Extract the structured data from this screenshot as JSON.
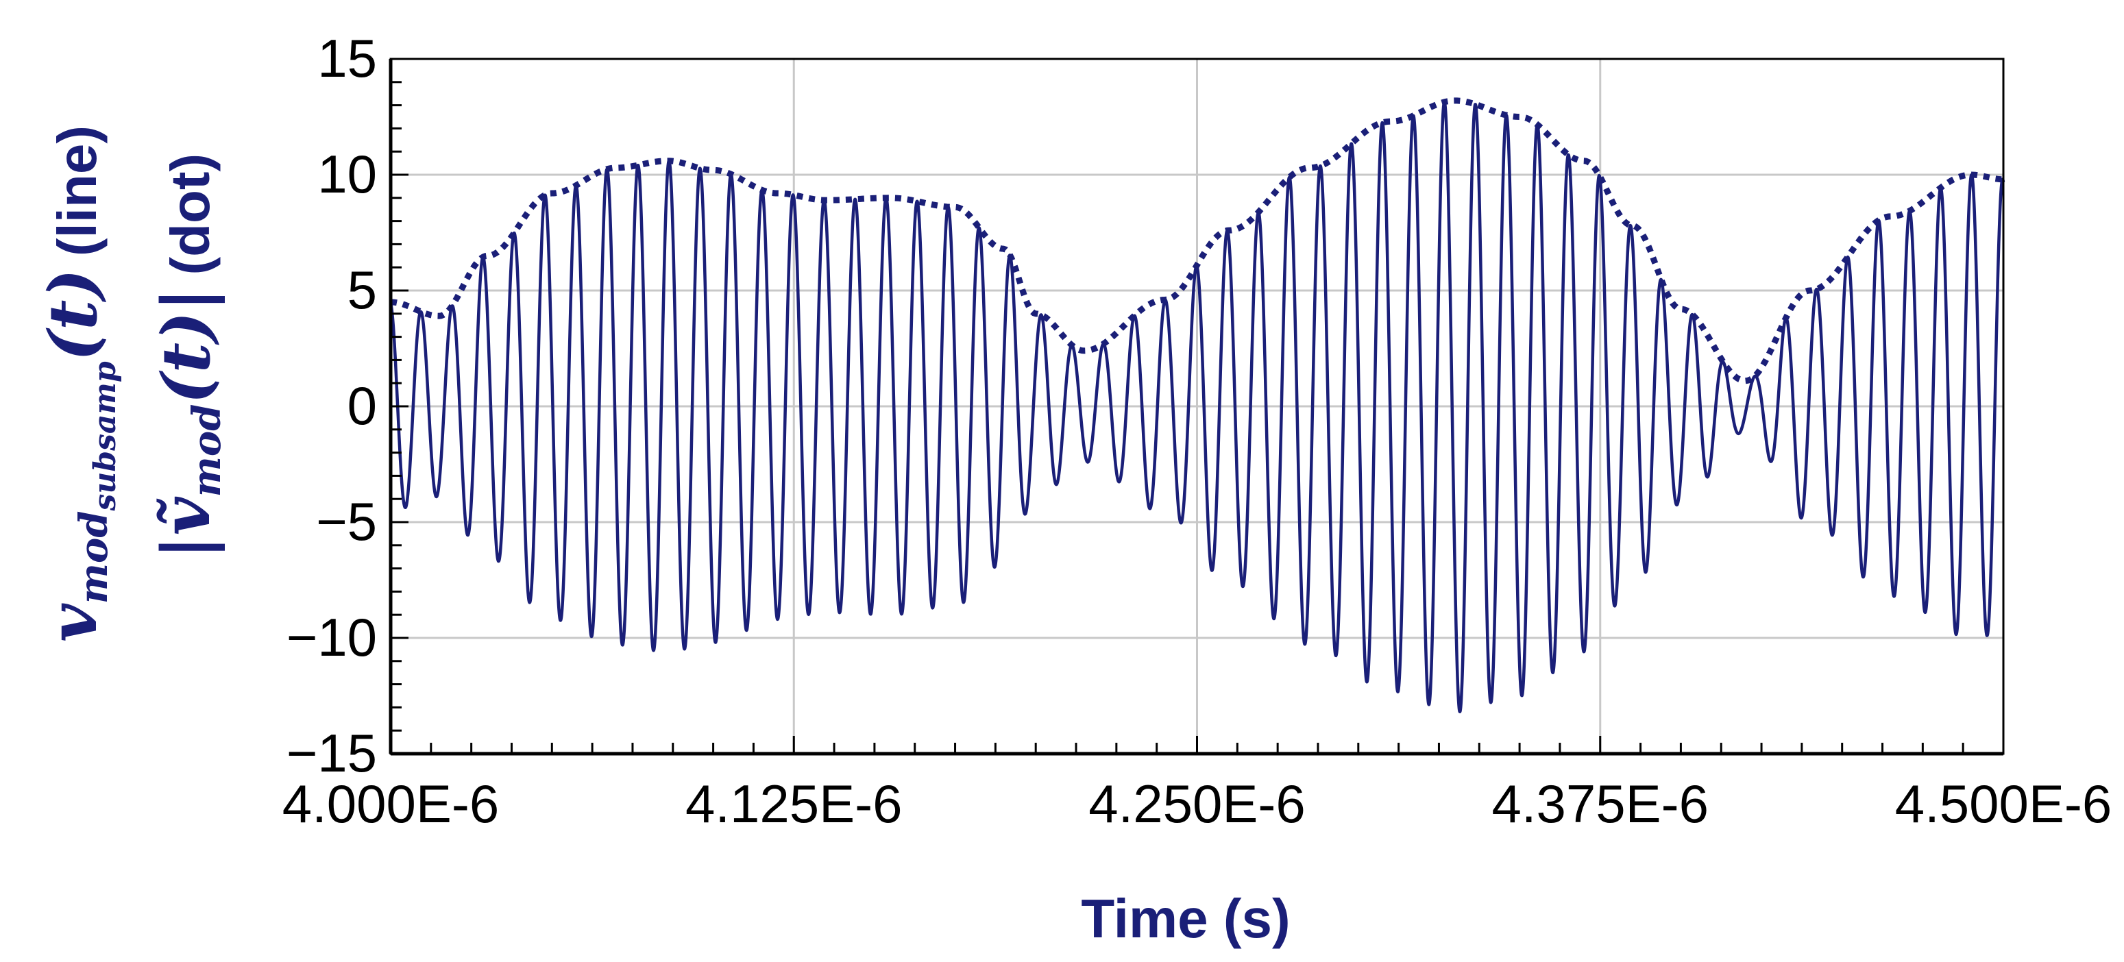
{
  "chart_data": {
    "type": "line",
    "title": "",
    "xlabel": "Time (s)",
    "ylabel": {
      "line1": {
        "symbol": "v",
        "sub": "mod",
        "subsub": "subsamp",
        "arg": "(t)",
        "suffix": "(line)"
      },
      "line2": {
        "open": "|",
        "symbol": "ṽ",
        "sub": "mod",
        "arg": "(t)",
        "close": "|",
        "suffix": "(dot)"
      }
    },
    "xlim": [
      4e-06,
      4.5e-06
    ],
    "ylim": [
      -15,
      15
    ],
    "x_ticks": [
      4e-06,
      4.125e-06,
      4.25e-06,
      4.375e-06,
      4.5e-06
    ],
    "x_tick_labels": [
      "4.000E-6",
      "4.125E-6",
      "4.250E-6",
      "4.375E-6",
      "4.500E-6"
    ],
    "x_minor_step": 1.25e-08,
    "y_ticks": [
      15,
      10,
      5,
      0,
      -5,
      -10,
      -15
    ],
    "y_tick_labels": [
      "15",
      "10",
      "5",
      "0",
      "−5",
      "−10",
      "−15"
    ],
    "y_minor_step": 1,
    "grid": true,
    "carrier_cycles": 52,
    "series": [
      {
        "style": "line",
        "color": "#1a1f78",
        "x": [
          4e-06,
          4.015e-06,
          4.03e-06,
          4.05e-06,
          4.07e-06,
          4.086e-06,
          4.1e-06,
          4.12e-06,
          4.135e-06,
          4.155e-06,
          4.175e-06,
          4.19e-06,
          4.2e-06,
          4.215e-06,
          4.24e-06,
          4.26e-06,
          4.285e-06,
          4.31e-06,
          4.33e-06,
          4.35e-06,
          4.37e-06,
          4.385e-06,
          4.4e-06,
          4.42e-06,
          4.44e-06,
          4.465e-06,
          4.49e-06,
          4.5e-06
        ],
        "amplitude": [
          4.5,
          3.9,
          6.5,
          9.2,
          10.3,
          10.6,
          10.2,
          9.2,
          8.9,
          9.0,
          8.6,
          6.8,
          4.0,
          2.4,
          4.6,
          7.6,
          10.3,
          12.3,
          13.2,
          12.5,
          10.6,
          7.8,
          4.2,
          1.1,
          5.0,
          8.2,
          10.0,
          9.8
        ]
      },
      {
        "style": "dot",
        "color": "#1a1f78",
        "x": [
          4e-06,
          4.015e-06,
          4.03e-06,
          4.05e-06,
          4.07e-06,
          4.086e-06,
          4.1e-06,
          4.12e-06,
          4.135e-06,
          4.155e-06,
          4.175e-06,
          4.19e-06,
          4.2e-06,
          4.215e-06,
          4.24e-06,
          4.26e-06,
          4.285e-06,
          4.31e-06,
          4.33e-06,
          4.35e-06,
          4.37e-06,
          4.385e-06,
          4.4e-06,
          4.42e-06,
          4.44e-06,
          4.465e-06,
          4.49e-06,
          4.5e-06
        ],
        "y": [
          4.5,
          3.9,
          6.5,
          9.2,
          10.3,
          10.6,
          10.2,
          9.2,
          8.9,
          9.0,
          8.6,
          6.8,
          4.0,
          2.4,
          4.6,
          7.6,
          10.3,
          12.3,
          13.2,
          12.5,
          10.6,
          7.8,
          4.2,
          1.1,
          5.0,
          8.2,
          10.0,
          9.8
        ]
      }
    ]
  },
  "colors": {
    "series": "#1a1f78",
    "axis_title": "#1a1f78",
    "grid": "#c8c8c8",
    "frame": "#000000"
  }
}
